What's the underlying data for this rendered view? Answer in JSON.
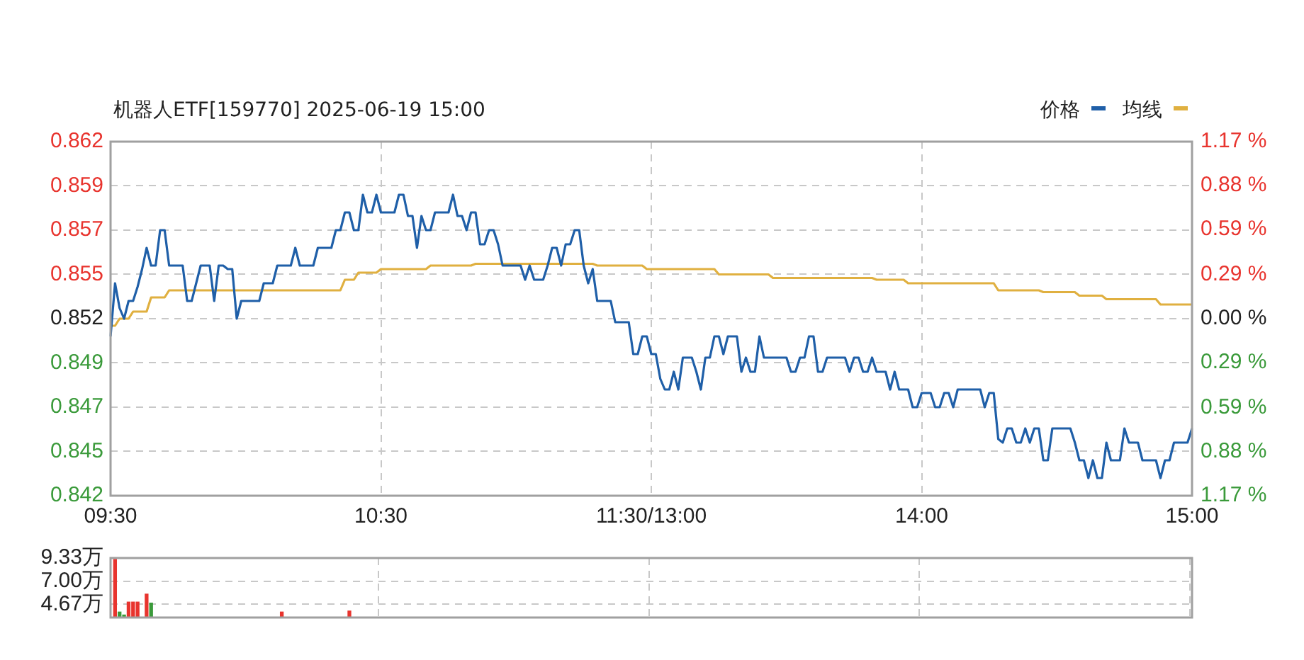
{
  "chart_data": [
    {
      "type": "line",
      "title": "机器人ETF[159770] 2025-06-19 15:00",
      "categories": [
        "09:30",
        null,
        null,
        null,
        null,
        null,
        null,
        null,
        null,
        null,
        null,
        null,
        null,
        null,
        null,
        null,
        null,
        null,
        null,
        null,
        null,
        null,
        null,
        null,
        null,
        null,
        null,
        null,
        null,
        null,
        null,
        null,
        null,
        null,
        null,
        null,
        null,
        null,
        null,
        null,
        null,
        null,
        null,
        null,
        null,
        null,
        null,
        null,
        null,
        null,
        null,
        null,
        null,
        null,
        null,
        null,
        null,
        null,
        null,
        null,
        "10:30",
        null,
        null,
        null,
        null,
        null,
        null,
        null,
        null,
        null,
        null,
        null,
        null,
        null,
        null,
        null,
        null,
        null,
        null,
        null,
        null,
        null,
        null,
        null,
        null,
        null,
        null,
        null,
        null,
        null,
        null,
        null,
        null,
        null,
        null,
        null,
        null,
        null,
        null,
        null,
        null,
        null,
        null,
        null,
        null,
        null,
        null,
        null,
        null,
        null,
        null,
        null,
        null,
        null,
        null,
        null,
        null,
        null,
        null,
        null,
        "11:30/13:00",
        null,
        null,
        null,
        null,
        null,
        null,
        null,
        null,
        null,
        null,
        null,
        null,
        null,
        null,
        null,
        null,
        null,
        null,
        null,
        null,
        null,
        null,
        null,
        null,
        null,
        null,
        null,
        null,
        null,
        null,
        null,
        null,
        null,
        null,
        null,
        null,
        null,
        null,
        null,
        null,
        null,
        null,
        null,
        null,
        null,
        null,
        null,
        null,
        null,
        null,
        null,
        null,
        null,
        null,
        null,
        null,
        null,
        null,
        null,
        "14:00",
        null,
        null,
        null,
        null,
        null,
        null,
        null,
        null,
        null,
        null,
        null,
        null,
        null,
        null,
        null,
        null,
        null,
        null,
        null,
        null,
        null,
        null,
        null,
        null,
        null,
        null,
        null,
        null,
        null,
        null,
        null,
        null,
        null,
        null,
        null,
        null,
        null,
        null,
        null,
        null,
        null,
        null,
        null,
        null,
        null,
        null,
        null,
        null,
        null,
        null,
        null,
        null,
        null,
        null,
        null,
        null,
        null,
        null,
        null,
        "15:00"
      ],
      "ylim": [
        0.842,
        0.862
      ],
      "yticks": [
        0.842,
        {
          "value": 0.8445,
          "label": "0.845"
        },
        0.847,
        {
          "value": 0.8495,
          "label": "0.849"
        },
        0.852,
        {
          "value": 0.8545,
          "label": "0.855"
        },
        0.857,
        {
          "value": 0.8595,
          "label": "0.859"
        },
        0.862
      ],
      "y2lim": [
        -1.17,
        1.17
      ],
      "y2ticks": [
        {
          "value": -1.17,
          "label": "1.17 %"
        },
        {
          "value": -0.88,
          "label": "0.88 %"
        },
        {
          "value": -0.59,
          "label": "0.59 %"
        },
        {
          "value": -0.29,
          "label": "0.29 %"
        },
        {
          "value": 0,
          "label": "0.00 %"
        },
        {
          "value": 0.29,
          "label": "0.29 %"
        },
        {
          "value": 0.59,
          "label": "0.59 %"
        },
        {
          "value": 0.88,
          "label": "0.88 %"
        },
        {
          "value": 1.17,
          "label": "1.17 %"
        }
      ],
      "grid": true,
      "legend": "top right",
      "marker": "none",
      "line_style": "solid",
      "series": [
        {
          "name": "价格",
          "color": "#1f5fa8",
          "values": [
            0.851,
            0.854,
            0.8526,
            0.852,
            0.853,
            0.853,
            0.8538,
            0.8548,
            0.856,
            0.855,
            0.855,
            0.857,
            0.857,
            0.855,
            0.855,
            0.855,
            0.855,
            0.853,
            0.853,
            0.854,
            0.855,
            0.855,
            0.855,
            0.853,
            0.855,
            0.855,
            0.8548,
            0.8548,
            0.852,
            0.853,
            0.853,
            0.853,
            0.853,
            0.853,
            0.854,
            0.854,
            0.854,
            0.855,
            0.855,
            0.855,
            0.855,
            0.856,
            0.855,
            0.855,
            0.855,
            0.855,
            0.856,
            0.856,
            0.856,
            0.856,
            0.857,
            0.857,
            0.858,
            0.858,
            0.857,
            0.857,
            0.859,
            0.858,
            0.858,
            0.859,
            0.858,
            0.858,
            0.858,
            0.858,
            0.859,
            0.859,
            0.8578,
            0.8578,
            0.856,
            0.8578,
            0.857,
            0.857,
            0.858,
            0.858,
            0.858,
            0.858,
            0.859,
            0.8578,
            0.8578,
            0.857,
            0.858,
            0.858,
            0.8562,
            0.8562,
            0.857,
            0.857,
            0.8562,
            0.855,
            0.855,
            0.855,
            0.855,
            0.855,
            0.8542,
            0.855,
            0.8542,
            0.8542,
            0.8542,
            0.855,
            0.856,
            0.856,
            0.855,
            0.8562,
            0.8562,
            0.857,
            0.857,
            0.855,
            0.854,
            0.8548,
            0.853,
            0.853,
            0.853,
            0.853,
            0.8518,
            0.8518,
            0.8518,
            0.8518,
            0.85,
            0.85,
            0.851,
            0.851,
            0.85,
            0.85,
            0.8486,
            0.848,
            0.848,
            0.849,
            0.848,
            0.8498,
            0.8498,
            0.8498,
            0.849,
            0.848,
            0.8498,
            0.8498,
            0.851,
            0.851,
            0.85,
            0.851,
            0.851,
            0.851,
            0.849,
            0.8498,
            0.849,
            0.849,
            0.851,
            0.8498,
            0.8498,
            0.8498,
            0.8498,
            0.8498,
            0.8498,
            0.849,
            0.849,
            0.8498,
            0.8498,
            0.851,
            0.851,
            0.849,
            0.849,
            0.8498,
            0.8498,
            0.8498,
            0.8498,
            0.8498,
            0.849,
            0.8498,
            0.8498,
            0.849,
            0.849,
            0.8498,
            0.849,
            0.849,
            0.849,
            0.848,
            0.849,
            0.848,
            0.848,
            0.848,
            0.847,
            0.847,
            0.8478,
            0.8478,
            0.8478,
            0.847,
            0.847,
            0.8478,
            0.8478,
            0.847,
            0.848,
            0.848,
            0.848,
            0.848,
            0.848,
            0.848,
            0.847,
            0.8478,
            0.8478,
            0.8452,
            0.845,
            0.8458,
            0.8458,
            0.845,
            0.845,
            0.8458,
            0.845,
            0.8458,
            0.8458,
            0.844,
            0.844,
            0.8458,
            0.8458,
            0.8458,
            0.8458,
            0.8458,
            0.845,
            0.844,
            0.844,
            0.843,
            0.844,
            0.843,
            0.843,
            0.845,
            0.844,
            0.844,
            0.844,
            0.8458,
            0.845,
            0.845,
            0.845,
            0.844,
            0.844,
            0.844,
            0.844,
            0.843,
            0.844,
            0.844,
            0.845,
            0.845,
            0.845,
            0.845,
            0.8458
          ]
        },
        {
          "name": "均线",
          "color": "#e0b040",
          "values": [
            0.8516,
            0.8516,
            0.852,
            0.852,
            0.852,
            0.8524,
            0.8524,
            0.8524,
            0.8524,
            0.8532,
            0.8532,
            0.8532,
            0.8532,
            0.8536,
            0.8536,
            0.8536,
            0.8536,
            0.8536,
            0.8536,
            0.8536,
            0.8536,
            0.8536,
            0.8536,
            0.8536,
            0.8536,
            0.8536,
            0.8536,
            0.8536,
            0.8536,
            0.8536,
            0.8536,
            0.8536,
            0.8536,
            0.8536,
            0.8536,
            0.8536,
            0.8536,
            0.8536,
            0.8536,
            0.8536,
            0.8536,
            0.8536,
            0.8536,
            0.8536,
            0.8536,
            0.8536,
            0.8536,
            0.8536,
            0.8536,
            0.8536,
            0.8536,
            0.8536,
            0.8542,
            0.8542,
            0.8542,
            0.8546,
            0.8546,
            0.8546,
            0.8546,
            0.8546,
            0.8548,
            0.8548,
            0.8548,
            0.8548,
            0.8548,
            0.8548,
            0.8548,
            0.8548,
            0.8548,
            0.8548,
            0.8548,
            0.855,
            0.855,
            0.855,
            0.855,
            0.855,
            0.855,
            0.855,
            0.855,
            0.855,
            0.855,
            0.8551,
            0.8551,
            0.8551,
            0.8551,
            0.8551,
            0.8551,
            0.8551,
            0.8551,
            0.8551,
            0.8551,
            0.8551,
            0.8551,
            0.8551,
            0.8551,
            0.8551,
            0.8551,
            0.8551,
            0.8551,
            0.8551,
            0.8551,
            0.8551,
            0.8551,
            0.8551,
            0.8551,
            0.8551,
            0.8551,
            0.8551,
            0.855,
            0.855,
            0.855,
            0.855,
            0.855,
            0.855,
            0.855,
            0.855,
            0.855,
            0.855,
            0.855,
            0.8548,
            0.8548,
            0.8548,
            0.8548,
            0.8548,
            0.8548,
            0.8548,
            0.8548,
            0.8548,
            0.8548,
            0.8548,
            0.8548,
            0.8548,
            0.8548,
            0.8548,
            0.8548,
            0.8545,
            0.8545,
            0.8545,
            0.8545,
            0.8545,
            0.8545,
            0.8545,
            0.8545,
            0.8545,
            0.8545,
            0.8545,
            0.8545,
            0.8543,
            0.8543,
            0.8543,
            0.8543,
            0.8543,
            0.8543,
            0.8543,
            0.8543,
            0.8543,
            0.8543,
            0.8543,
            0.8543,
            0.8543,
            0.8543,
            0.8543,
            0.8543,
            0.8543,
            0.8543,
            0.8543,
            0.8543,
            0.8543,
            0.8543,
            0.8543,
            0.8542,
            0.8542,
            0.8542,
            0.8542,
            0.8542,
            0.8542,
            0.8542,
            0.854,
            0.854,
            0.854,
            0.854,
            0.854,
            0.854,
            0.854,
            0.854,
            0.854,
            0.854,
            0.854,
            0.854,
            0.854,
            0.854,
            0.854,
            0.854,
            0.854,
            0.854,
            0.854,
            0.854,
            0.8536,
            0.8536,
            0.8536,
            0.8536,
            0.8536,
            0.8536,
            0.8536,
            0.8536,
            0.8536,
            0.8536,
            0.8535,
            0.8535,
            0.8535,
            0.8535,
            0.8535,
            0.8535,
            0.8535,
            0.8535,
            0.8533,
            0.8533,
            0.8533,
            0.8533,
            0.8533,
            0.8533,
            0.8531,
            0.8531,
            0.8531,
            0.8531,
            0.8531,
            0.8531,
            0.8531,
            0.8531,
            0.8531,
            0.8531,
            0.8531,
            0.8531,
            0.8528,
            0.8528,
            0.8528,
            0.8528,
            0.8528,
            0.8528,
            0.8528,
            0.8528
          ]
        }
      ]
    },
    {
      "type": "bar",
      "categories": [
        null,
        null,
        null,
        null,
        null,
        null,
        null,
        null,
        null,
        null,
        null,
        null,
        null,
        null,
        null,
        null,
        null,
        null,
        null,
        null,
        null,
        null,
        null,
        null,
        null,
        null,
        null,
        null,
        null,
        null,
        null,
        null,
        null,
        null,
        null,
        null,
        null,
        null,
        null,
        null,
        null,
        null,
        null,
        null,
        null,
        null,
        null,
        null,
        null,
        null,
        null,
        null,
        null,
        null,
        null,
        null,
        null,
        null,
        null,
        null,
        null,
        null,
        null,
        null,
        null,
        null,
        null,
        null,
        null,
        null,
        null,
        null,
        null,
        null,
        null,
        null,
        null,
        null,
        null,
        null,
        null,
        null,
        null,
        null,
        null,
        null,
        null,
        null,
        null,
        null,
        null,
        null,
        null,
        null,
        null,
        null,
        null,
        null,
        null,
        null,
        null,
        null,
        null,
        null,
        null,
        null,
        null,
        null,
        null,
        null,
        null,
        null,
        null,
        null,
        null,
        null,
        null,
        null,
        null,
        null,
        null,
        null,
        null,
        null,
        null,
        null,
        null,
        null,
        null,
        null,
        null,
        null,
        null,
        null,
        null,
        null,
        null,
        null,
        null,
        null,
        null,
        null,
        null,
        null,
        null,
        null,
        null,
        null,
        null,
        null,
        null,
        null,
        null,
        null,
        null,
        null,
        null,
        null,
        null,
        null,
        null,
        null,
        null,
        null,
        null,
        null,
        null,
        null,
        null,
        null,
        null,
        null,
        null,
        null,
        null,
        null,
        null,
        null,
        null,
        null,
        null,
        null,
        null,
        null,
        null,
        null,
        null,
        null,
        null,
        null,
        null,
        null,
        null,
        null,
        null,
        null,
        null,
        null,
        null,
        null,
        null,
        null,
        null,
        null,
        null,
        null,
        null,
        null,
        null,
        null,
        null,
        null,
        null,
        null,
        null,
        null,
        null,
        null,
        null,
        null,
        null,
        null,
        null,
        null,
        null,
        null,
        null,
        null,
        null,
        null,
        null,
        null,
        null,
        null,
        null,
        null,
        null,
        null,
        null,
        null,
        null
      ],
      "ylim": [
        3.35,
        9.33
      ],
      "yticks": [
        {
          "value": 4.67,
          "label": "4.67万"
        },
        {
          "value": 7.0,
          "label": "7.00万"
        },
        {
          "value": 9.33,
          "label": "9.33万"
        }
      ],
      "grid": true,
      "values": [
        null,
        9.2,
        3.9,
        3.6,
        4.9,
        4.9,
        4.9,
        null,
        5.7,
        4.8,
        null,
        null,
        null,
        null,
        null,
        null,
        null,
        null,
        null,
        null,
        null,
        null,
        null,
        null,
        null,
        null,
        null,
        null,
        null,
        null,
        null,
        null,
        null,
        null,
        null,
        null,
        null,
        null,
        3.9,
        null,
        null,
        null,
        null,
        null,
        null,
        null,
        null,
        null,
        null,
        null,
        null,
        null,
        null,
        4.0,
        null,
        null,
        null,
        null,
        null,
        null,
        null,
        null,
        null,
        null,
        null,
        null,
        null,
        null,
        null,
        null,
        null,
        null,
        null,
        null,
        null,
        null,
        null,
        null,
        null,
        null,
        null,
        null,
        null,
        null,
        null,
        null,
        null,
        null,
        null,
        null,
        null,
        null,
        null,
        null,
        null,
        null,
        null,
        null,
        null,
        null,
        null,
        null,
        null,
        null,
        null,
        null,
        null,
        null,
        null,
        null,
        null,
        null,
        null,
        null,
        null,
        null,
        null,
        null,
        null,
        null,
        null,
        null,
        null,
        null,
        null,
        null,
        null,
        null,
        null,
        null,
        null,
        null,
        null,
        null,
        null,
        null,
        null,
        null,
        null,
        null,
        null,
        null,
        null,
        null,
        null,
        null,
        null,
        null,
        null,
        null,
        null,
        null,
        null,
        null,
        null,
        null,
        null,
        null,
        null,
        null,
        null,
        null,
        null,
        null,
        null,
        null,
        null,
        null,
        null,
        null,
        null,
        null,
        null,
        null,
        null,
        null,
        null,
        null,
        null,
        null,
        null,
        null,
        null,
        null,
        null,
        null,
        null,
        null,
        null,
        null,
        null,
        null,
        null,
        null,
        null,
        null,
        null,
        null,
        null,
        null,
        null,
        null,
        null,
        null,
        null,
        null,
        null,
        null,
        null,
        null,
        null,
        null,
        null,
        null,
        null,
        null,
        null,
        null,
        null,
        null,
        null,
        null,
        null,
        null,
        null,
        null,
        null,
        null,
        null,
        null,
        null,
        null,
        null,
        null,
        null,
        null,
        null,
        null,
        null,
        null,
        null
      ],
      "colors": [
        null,
        "#e8342e",
        "#3a9a3a",
        "#3a9a3a",
        "#e8342e",
        "#e8342e",
        "#e8342e",
        null,
        "#e8342e",
        "#3a9a3a",
        null,
        null,
        null,
        null,
        null,
        null,
        null,
        null,
        null,
        null,
        null,
        null,
        null,
        null,
        null,
        null,
        null,
        null,
        null,
        null,
        null,
        null,
        null,
        null,
        null,
        null,
        null,
        null,
        "#e8342e",
        null,
        null,
        null,
        null,
        null,
        null,
        null,
        null,
        null,
        null,
        null,
        null,
        null,
        null,
        "#e8342e",
        null,
        null,
        null,
        null,
        null,
        null,
        null,
        null,
        null,
        null,
        null,
        null,
        null,
        null,
        null,
        null,
        null,
        null,
        null,
        null,
        null,
        null,
        null,
        null,
        null,
        null,
        null,
        null,
        null,
        null,
        null,
        null,
        null,
        null,
        null,
        null,
        null,
        null,
        null,
        null,
        null,
        null,
        null,
        null,
        null,
        null,
        null,
        null,
        null,
        null,
        null,
        null,
        null,
        null,
        null,
        null,
        null,
        null,
        null,
        null,
        null,
        null,
        null,
        null,
        null,
        null,
        null,
        null,
        null,
        null,
        null,
        null,
        null,
        null,
        null,
        null,
        null,
        null,
        null,
        null,
        null,
        null,
        null,
        null,
        null,
        null,
        null,
        null,
        null,
        null,
        null,
        null,
        null,
        null,
        null,
        null,
        null,
        null,
        null,
        null,
        null,
        null,
        null,
        null,
        null,
        null,
        null,
        null,
        null,
        null,
        null,
        null,
        null,
        null,
        null,
        null,
        null,
        null,
        null,
        null,
        null,
        null,
        null,
        null,
        null,
        null,
        null,
        null,
        null,
        null,
        null,
        null,
        null,
        null,
        null,
        null,
        null,
        null,
        null,
        null,
        null,
        null,
        null,
        null,
        null,
        null,
        null,
        null,
        null,
        null,
        null,
        null,
        null,
        null,
        null,
        null,
        null,
        null,
        null,
        null,
        null,
        null,
        null,
        null,
        null,
        null,
        null,
        null,
        null,
        null,
        null,
        null,
        null,
        null,
        null,
        null,
        null,
        null,
        null,
        null,
        null,
        null,
        null,
        null,
        null,
        null,
        null
      ]
    }
  ]
}
